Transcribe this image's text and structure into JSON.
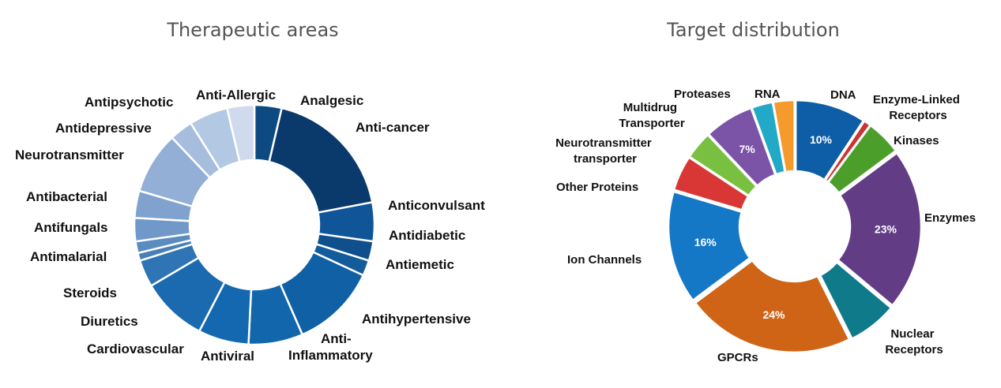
{
  "chart_data": [
    {
      "type": "pie",
      "variant": "donut",
      "title": "Therapeutic areas",
      "categories": [
        "Analgesic",
        "Anti-cancer",
        "Anticonvulsant",
        "Antidiabetic",
        "Antiemetic",
        "Antihypertensive",
        "Anti-Inflammatory",
        "Antiviral",
        "Cardiovascular",
        "Diuretics",
        "Steroids",
        "Antimalarial",
        "Antifungals",
        "Antibacterial",
        "Neurotransmitter",
        "Antidepressive",
        "Antipsychotic",
        "Anti-Allergic"
      ],
      "values": [
        3.5,
        17.5,
        5,
        2.5,
        2,
        11,
        7,
        6.5,
        8.5,
        3.5,
        1,
        1.5,
        3,
        3.5,
        8,
        3,
        5,
        3.5
      ],
      "colors": [
        "#0d4a82",
        "#0a3a6b",
        "#0f5597",
        "#0e4f8c",
        "#135c9b",
        "#1060a6",
        "#1166ac",
        "#1468af",
        "#1b6ab0",
        "#2f75b6",
        "#4a80b7",
        "#5a8cc0",
        "#7098c9",
        "#7fa3ce",
        "#93afd6",
        "#a6bddd",
        "#b3c8e2",
        "#cfdbec"
      ]
    },
    {
      "type": "pie",
      "variant": "donut",
      "title": "Target distribution",
      "categories": [
        "DNA",
        "Enzyme-Linked Receptors",
        "Kinases",
        "Enzymes",
        "Nuclear Receptors",
        "GPCRs",
        "Ion Channels",
        "Other Proteins",
        "Neurotransmitter transporter",
        "Multidrug Transporter",
        "Proteases",
        "RNA"
      ],
      "values": [
        10,
        1,
        5,
        23,
        7,
        24,
        16,
        5,
        4,
        7,
        3,
        3
      ],
      "data_labels": [
        "10%",
        "",
        "",
        "23%",
        "",
        "24%",
        "16%",
        "",
        "",
        "7%",
        "",
        ""
      ],
      "colors": [
        "#0d5ea6",
        "#cc3333",
        "#4c9e2a",
        "#633c86",
        "#0f7a8a",
        "#d06416",
        "#1478c6",
        "#d93636",
        "#7ac040",
        "#7b54a7",
        "#21a9c7",
        "#f59a2d"
      ]
    }
  ]
}
